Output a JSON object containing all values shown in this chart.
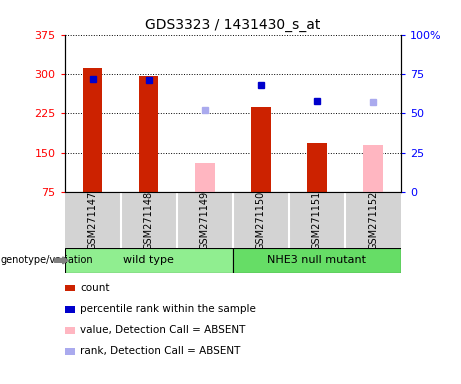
{
  "title": "GDS3323 / 1431430_s_at",
  "samples": [
    "GSM271147",
    "GSM271148",
    "GSM271149",
    "GSM271150",
    "GSM271151",
    "GSM271152"
  ],
  "groups": [
    "wild type",
    "wild type",
    "wild type",
    "NHE3 null mutant",
    "NHE3 null mutant",
    "NHE3 null mutant"
  ],
  "group_labels": [
    "wild type",
    "NHE3 null mutant"
  ],
  "group_colors": [
    "#90EE90",
    "#66DD66"
  ],
  "count_values": [
    312,
    296,
    null,
    238,
    168,
    null
  ],
  "count_absent": [
    null,
    null,
    130,
    null,
    null,
    165
  ],
  "rank_values": [
    72,
    71,
    null,
    68,
    58,
    null
  ],
  "rank_absent": [
    null,
    null,
    52,
    null,
    null,
    57
  ],
  "ylim_left": [
    75,
    375
  ],
  "ylim_right": [
    0,
    100
  ],
  "yticks_left": [
    75,
    150,
    225,
    300,
    375
  ],
  "ytick_labels_left": [
    "75",
    "150",
    "225",
    "300",
    "375"
  ],
  "yticks_right": [
    0,
    25,
    50,
    75,
    100
  ],
  "ytick_labels_right": [
    "0",
    "25",
    "50",
    "75",
    "100%"
  ],
  "bar_color_present": "#CC2200",
  "bar_color_absent": "#FFB6C1",
  "dot_color_present": "#0000CC",
  "dot_color_absent": "#AAAAEE",
  "bar_width": 0.35,
  "bg_color": "#FFFFFF",
  "plot_bg": "#FFFFFF",
  "legend_items": [
    {
      "label": "count",
      "color": "#CC2200"
    },
    {
      "label": "percentile rank within the sample",
      "color": "#0000CC"
    },
    {
      "label": "value, Detection Call = ABSENT",
      "color": "#FFB6C1"
    },
    {
      "label": "rank, Detection Call = ABSENT",
      "color": "#AAAAEE"
    }
  ],
  "sample_bg_color": "#D3D3D3",
  "label_text": "genotype/variation"
}
